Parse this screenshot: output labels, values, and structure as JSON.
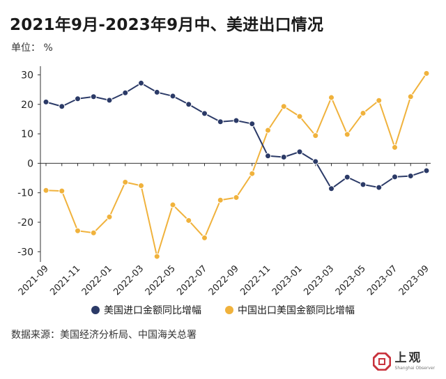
{
  "title": "2021年9月-2023年9月中、美进出口情况",
  "unit": "单位： %",
  "source": "数据来源：美国经济分析局、中国海关总署",
  "brand": {
    "name": "上观",
    "sub": "Shanghai Observer"
  },
  "colors": {
    "series1": "#2b3a67",
    "series2": "#f0b23c",
    "axis": "#333333",
    "brand": "#c8323c"
  },
  "chart_data": {
    "type": "line",
    "title": "2021年9月-2023年9月中、美进出口情况",
    "ylabel": "单位： %",
    "xlabel": "",
    "ylim": [
      -33,
      32
    ],
    "yticks": [
      -30,
      -20,
      -10,
      0,
      10,
      20,
      30
    ],
    "grid": false,
    "legend_position": "bottom",
    "x": [
      "2021-09",
      "2021-10",
      "2021-11",
      "2021-12",
      "2022-01",
      "2022-02",
      "2022-03",
      "2022-04",
      "2022-05",
      "2022-06",
      "2022-07",
      "2022-08",
      "2022-09",
      "2022-10",
      "2022-11",
      "2022-12",
      "2023-01",
      "2023-02",
      "2023-03",
      "2023-04",
      "2023-05",
      "2023-06",
      "2023-07",
      "2023-08",
      "2023-09"
    ],
    "xtick_labels": [
      "2021-09",
      "2021-11",
      "2022-01",
      "2022-03",
      "2022-05",
      "2022-07",
      "2022-09",
      "2022-11",
      "2023-01",
      "2023-03",
      "2023-05",
      "2023-07",
      "2023-09"
    ],
    "series": [
      {
        "name": "美国进口金额同比增幅",
        "values": [
          20.8,
          19.3,
          21.9,
          22.6,
          21.4,
          23.9,
          27.2,
          24.1,
          22.8,
          20.0,
          16.9,
          14.1,
          14.5,
          13.4,
          2.5,
          2.1,
          3.9,
          0.6,
          -8.6,
          -4.7,
          -7.2,
          -8.2,
          -4.6,
          -4.3,
          -2.5
        ]
      },
      {
        "name": "中国出口美国金额同比增幅",
        "values": [
          -9.2,
          -9.4,
          -22.9,
          -23.6,
          -18.2,
          -6.4,
          -7.6,
          -31.6,
          -14.1,
          -19.4,
          -25.3,
          -12.5,
          -11.6,
          -3.5,
          11.2,
          19.3,
          15.9,
          9.4,
          22.3,
          9.8,
          17.0,
          21.3,
          5.4,
          22.6,
          30.5
        ]
      }
    ]
  }
}
